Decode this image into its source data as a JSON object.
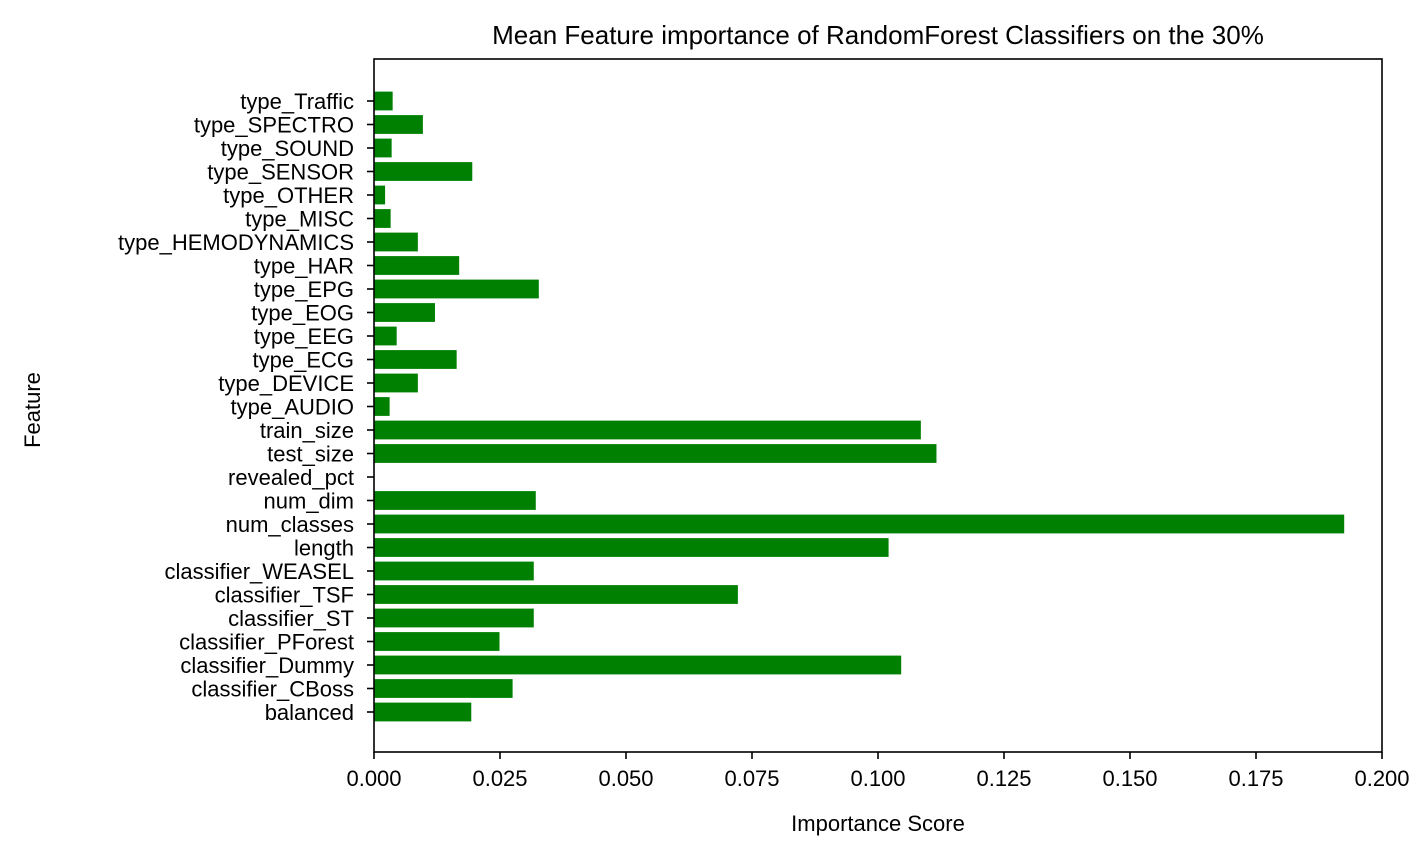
{
  "chart_data": {
    "type": "bar",
    "orientation": "horizontal",
    "title": "Mean Feature importance of RandomForest Classifiers on the 30%",
    "xlabel": "Importance Score",
    "ylabel": "Feature",
    "xlim": [
      0.0,
      0.2
    ],
    "xticks": [
      "0.000",
      "0.025",
      "0.050",
      "0.075",
      "0.100",
      "0.125",
      "0.150",
      "0.175",
      "0.200"
    ],
    "grid": false,
    "bar_color": "#008000",
    "categories": [
      "balanced",
      "classifier_CBoss",
      "classifier_Dummy",
      "classifier_PForest",
      "classifier_ST",
      "classifier_TSF",
      "classifier_WEASEL",
      "length",
      "num_classes",
      "num_dim",
      "revealed_pct",
      "test_size",
      "train_size",
      "type_AUDIO",
      "type_DEVICE",
      "type_ECG",
      "type_EEG",
      "type_EOG",
      "type_EPG",
      "type_HAR",
      "type_HEMODYNAMICS",
      "type_MISC",
      "type_OTHER",
      "type_SENSOR",
      "type_SOUND",
      "type_SPECTRO",
      "type_Traffic"
    ],
    "values": [
      0.0193,
      0.0275,
      0.1046,
      0.0249,
      0.0317,
      0.0722,
      0.0317,
      0.1021,
      0.1925,
      0.0321,
      0.0,
      0.1116,
      0.1085,
      0.0031,
      0.0087,
      0.0164,
      0.0045,
      0.0121,
      0.0327,
      0.0169,
      0.0087,
      0.0033,
      0.0022,
      0.0195,
      0.0035,
      0.0097,
      0.0037
    ]
  }
}
